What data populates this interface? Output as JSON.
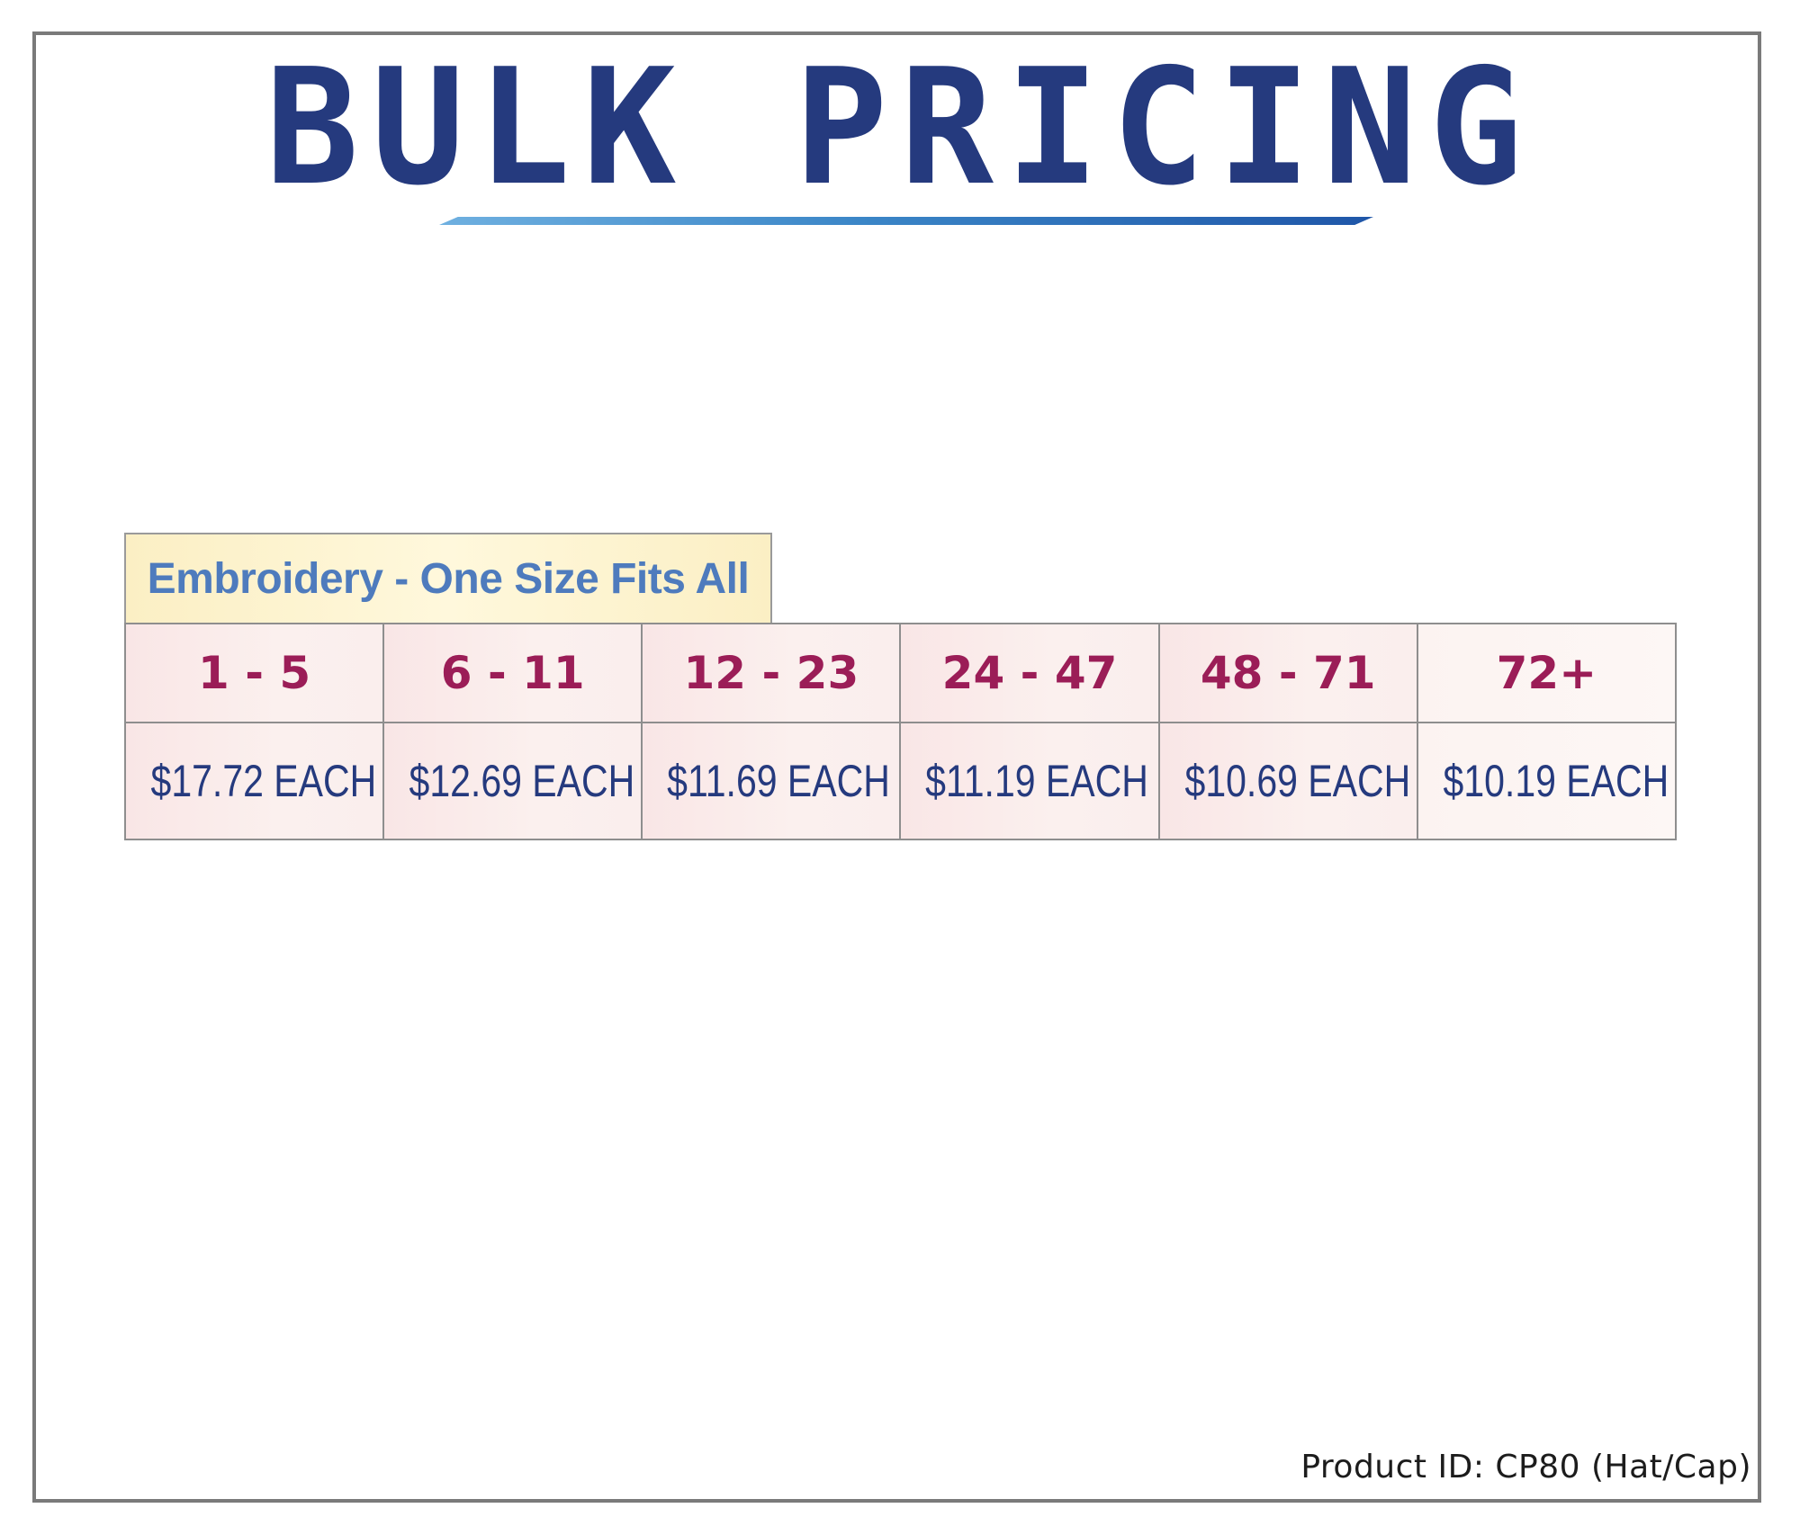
{
  "title": "BULK PRICING",
  "section_label": "Embroidery - One Size Fits All",
  "tiers": [
    {
      "quantity": "1 - 5",
      "price": "$17.72 EACH"
    },
    {
      "quantity": "6 - 11",
      "price": "$12.69 EACH"
    },
    {
      "quantity": "12 - 23",
      "price": "$11.69 EACH"
    },
    {
      "quantity": "24 - 47",
      "price": "$11.19 EACH"
    },
    {
      "quantity": "48 - 71",
      "price": "$10.69 EACH"
    },
    {
      "quantity": "72+",
      "price": "$10.19 EACH"
    }
  ],
  "product_id": "Product ID: CP80 (Hat/Cap)",
  "colors": {
    "title": "#253a7e",
    "quantity_text": "#9b1d57",
    "price_text": "#253a7e",
    "label_text": "#4e7bbd",
    "label_background": "#fbefc4",
    "cell_background": "#f9e6e6",
    "frame_border": "#7a7a7a"
  }
}
